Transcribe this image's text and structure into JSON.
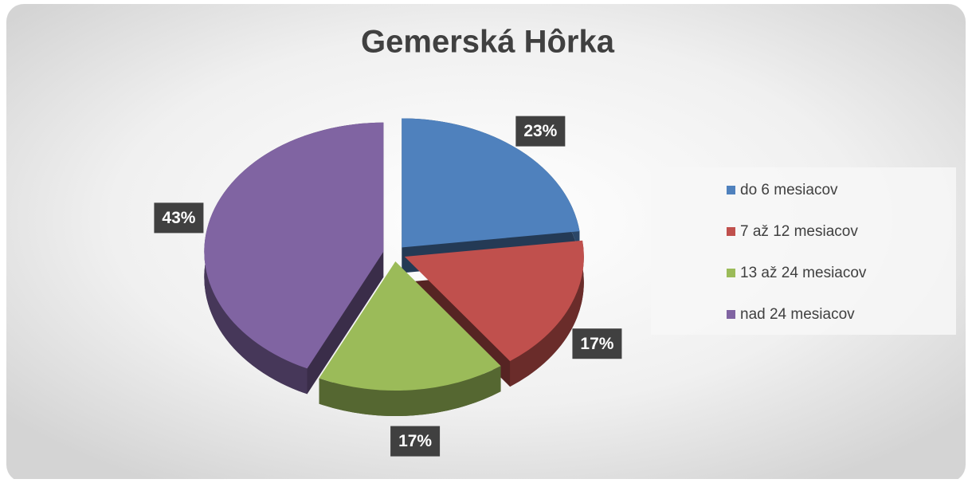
{
  "chart_data": {
    "type": "pie",
    "title": "Gemerská Hôrka",
    "categories": [
      "do 6 mesiacov",
      "7 až 12 mesiacov",
      "13 až 24 mesiacov",
      "nad 24 mesiacov"
    ],
    "values": [
      23,
      17,
      17,
      43
    ],
    "value_labels": [
      "23%",
      "17%",
      "17%",
      "43%"
    ],
    "colors": [
      "#4f81bd",
      "#c0504d",
      "#9bbb59",
      "#8064a2"
    ],
    "legend": "right"
  }
}
